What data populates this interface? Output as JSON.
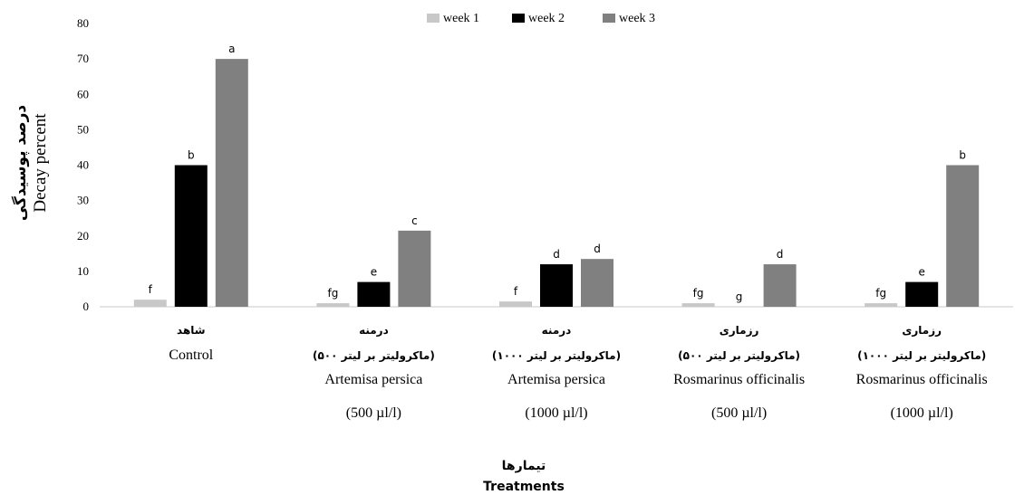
{
  "chart_data": {
    "type": "bar",
    "ylabel_fa": "درصد پوسیدگی",
    "ylabel": "Decay percent",
    "xlabel_fa": "تیمارها",
    "xlabel": "Treatments",
    "ylim": [
      0,
      80
    ],
    "yticks": [
      0,
      10,
      20,
      30,
      40,
      50,
      60,
      70,
      80
    ],
    "legend_position": "top-center",
    "categories": [
      {
        "lines": [
          "شاهد",
          "Control"
        ]
      },
      {
        "lines": [
          "درمنه",
          "(۵۰۰ ماکرولیتر بر لیتر)",
          "Artemisa persica",
          "(500 µl/l)"
        ]
      },
      {
        "lines": [
          "درمنه",
          "(۱۰۰۰ ماکرولیتر بر لیتر)",
          "Artemisa persica",
          "(1000 µl/l)"
        ]
      },
      {
        "lines": [
          "رزماری",
          "(۵۰۰ ماکرولیتر بر لیتر)",
          "Rosmarinus officinalis",
          "(500 µl/l)"
        ]
      },
      {
        "lines": [
          "رزماری",
          "(۱۰۰۰ ماکرولیتر بر لیتر)",
          "Rosmarinus officinalis",
          "(1000 µl/l)"
        ]
      }
    ],
    "series": [
      {
        "name": "week 1",
        "color": "#c8c8c8",
        "values": [
          2,
          1,
          1.5,
          1,
          1
        ],
        "letters": [
          "f",
          "fg",
          "f",
          "fg",
          "fg"
        ]
      },
      {
        "name": "week 2",
        "color": "#000000",
        "values": [
          40,
          7,
          12,
          0,
          7
        ],
        "letters": [
          "b",
          "e",
          "d",
          "g",
          "e"
        ]
      },
      {
        "name": "week 3",
        "color": "#808080",
        "values": [
          70,
          21.5,
          13.5,
          12,
          40
        ],
        "letters": [
          "a",
          "c",
          "d",
          "d",
          "b"
        ]
      }
    ]
  }
}
